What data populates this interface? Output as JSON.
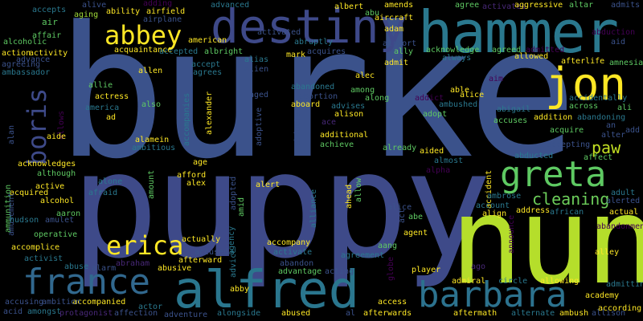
{
  "words": [
    {
      "text": "burke",
      "color": "#3b528b"
    },
    {
      "text": "puppy",
      "color": "#3e4a89"
    },
    {
      "text": "nun",
      "color": "#b5de2b"
    },
    {
      "text": "hammer",
      "color": "#2a788e"
    },
    {
      "text": "destiny",
      "color": "#3e4989"
    },
    {
      "text": "alfred",
      "color": "#2a768e"
    },
    {
      "text": "jon",
      "color": "#fde725"
    },
    {
      "text": "greta",
      "color": "#5ec962"
    },
    {
      "text": "france",
      "color": "#31688e"
    },
    {
      "text": "barbara",
      "color": "#2c728e"
    },
    {
      "text": "abbey",
      "color": "#fde725"
    },
    {
      "text": "erica",
      "color": "#fde725"
    },
    {
      "text": "boris",
      "color": "#3e4a89"
    },
    {
      "text": "paw",
      "color": "#c2df23"
    },
    {
      "text": "cleaning",
      "color": "#6ccd5a"
    },
    {
      "text": "accepts",
      "color": "#2a788e"
    },
    {
      "text": "air",
      "color": "#5ec962"
    },
    {
      "text": "alcoholic",
      "color": "#5ec962"
    },
    {
      "text": "affair",
      "color": "#5ec962"
    },
    {
      "text": "aging",
      "color": "#a0da39"
    },
    {
      "text": "alive",
      "color": "#3b528b"
    },
    {
      "text": "ability",
      "color": "#fde725"
    },
    {
      "text": "adding",
      "color": "#440154"
    },
    {
      "text": "airfield",
      "color": "#fde725"
    },
    {
      "text": "airplane",
      "color": "#3b528b"
    },
    {
      "text": "advanced",
      "color": "#2a788e"
    },
    {
      "text": "albert",
      "color": "#fde725"
    },
    {
      "text": "abu",
      "color": "#5ec962"
    },
    {
      "text": "aircraft",
      "color": "#fde725"
    },
    {
      "text": "amends",
      "color": "#fde725"
    },
    {
      "text": "adam",
      "color": "#fde725"
    },
    {
      "text": "agree",
      "color": "#5ec962"
    },
    {
      "text": "activates",
      "color": "#482878"
    },
    {
      "text": "aggressive",
      "color": "#fde725"
    },
    {
      "text": "altar",
      "color": "#5ec962"
    },
    {
      "text": "admits",
      "color": "#3b528b"
    },
    {
      "text": "abduction",
      "color": "#440154"
    },
    {
      "text": "aid",
      "color": "#3b528b"
    },
    {
      "text": "action",
      "color": "#fde725"
    },
    {
      "text": "advance",
      "color": "#3b528b"
    },
    {
      "text": "activity",
      "color": "#fde725"
    },
    {
      "text": "agreeing",
      "color": "#3b528b"
    },
    {
      "text": "ambassador",
      "color": "#2a788e"
    },
    {
      "text": "american",
      "color": "#fde725"
    },
    {
      "text": "activated",
      "color": "#3b528b"
    },
    {
      "text": "abruptly",
      "color": "#2a788e"
    },
    {
      "text": "airport",
      "color": "#3b528b"
    },
    {
      "text": "ally",
      "color": "#5ec962"
    },
    {
      "text": "acknowledge",
      "color": "#5ec962"
    },
    {
      "text": "agreed",
      "color": "#5ec962"
    },
    {
      "text": "admitted",
      "color": "#440154"
    },
    {
      "text": "acquaintance",
      "color": "#fde725"
    },
    {
      "text": "accepted",
      "color": "#2a788e"
    },
    {
      "text": "albright",
      "color": "#5ec962"
    },
    {
      "text": "acquires",
      "color": "#3b528b"
    },
    {
      "text": "always",
      "color": "#2a788e"
    },
    {
      "text": "allowed",
      "color": "#fde725"
    },
    {
      "text": "afterlife",
      "color": "#fde725"
    },
    {
      "text": "amnesia",
      "color": "#5ec962"
    },
    {
      "text": "mark",
      "color": "#fde725"
    },
    {
      "text": "alias",
      "color": "#2a788e"
    },
    {
      "text": "admit",
      "color": "#fde725"
    },
    {
      "text": "accept",
      "color": "#2a788e"
    },
    {
      "text": "allen",
      "color": "#fde725"
    },
    {
      "text": "agrees",
      "color": "#2a788e"
    },
    {
      "text": "alien",
      "color": "#3b528b"
    },
    {
      "text": "alec",
      "color": "#fde725"
    },
    {
      "text": "aim",
      "color": "#440154"
    },
    {
      "text": "allie",
      "color": "#5ec962"
    },
    {
      "text": "actress",
      "color": "#fde725"
    },
    {
      "text": "america",
      "color": "#2a788e"
    },
    {
      "text": "ad",
      "color": "#fde725"
    },
    {
      "text": "also",
      "color": "#5ec962"
    },
    {
      "text": "accompanies",
      "color": "#2a788e"
    },
    {
      "text": "alexander",
      "color": "#fde725"
    },
    {
      "text": "aged",
      "color": "#3b528b"
    },
    {
      "text": "abandoned",
      "color": "#2a788e"
    },
    {
      "text": "abortion",
      "color": "#3b528b"
    },
    {
      "text": "among",
      "color": "#5ec962"
    },
    {
      "text": "able",
      "color": "#fde725"
    },
    {
      "text": "addict",
      "color": "#440154"
    },
    {
      "text": "ambushed",
      "color": "#2a788e"
    },
    {
      "text": "alice",
      "color": "#fde725"
    },
    {
      "text": "along",
      "color": "#5ec962"
    },
    {
      "text": "aboard",
      "color": "#fde725"
    },
    {
      "text": "advises",
      "color": "#2a788e"
    },
    {
      "text": "alison",
      "color": "#fde725"
    },
    {
      "text": "ace",
      "color": "#482878"
    },
    {
      "text": "adopt",
      "color": "#5ec962"
    },
    {
      "text": "abigail",
      "color": "#2a788e"
    },
    {
      "text": "accuses",
      "color": "#5ec962"
    },
    {
      "text": "addition",
      "color": "#fde725"
    },
    {
      "text": "accidentally",
      "color": "#2a788e"
    },
    {
      "text": "across",
      "color": "#5ec962"
    },
    {
      "text": "abandoning",
      "color": "#2a788e"
    },
    {
      "text": "ali",
      "color": "#5ec962"
    },
    {
      "text": "an",
      "color": "#3b528b"
    },
    {
      "text": "add",
      "color": "#3b528b"
    },
    {
      "text": "alter",
      "color": "#3b528b"
    },
    {
      "text": "acquire",
      "color": "#5ec962"
    },
    {
      "text": "allows",
      "color": "#440154"
    },
    {
      "text": "alan",
      "color": "#3b528b"
    },
    {
      "text": "aide",
      "color": "#fde725"
    },
    {
      "text": "ambitious",
      "color": "#2a788e"
    },
    {
      "text": "alamein",
      "color": "#fde725"
    },
    {
      "text": "adoptive",
      "color": "#3b528b"
    },
    {
      "text": "abducts",
      "color": "#3b528b"
    },
    {
      "text": "additional",
      "color": "#fde725"
    },
    {
      "text": "achieve",
      "color": "#5ec962"
    },
    {
      "text": "already",
      "color": "#5ec962"
    },
    {
      "text": "aided",
      "color": "#fde725"
    },
    {
      "text": "abducted",
      "color": "#2a788e"
    },
    {
      "text": "accepting",
      "color": "#3b528b"
    },
    {
      "text": "affect",
      "color": "#5ec962"
    },
    {
      "text": "acknowledges",
      "color": "#fde725"
    },
    {
      "text": "although",
      "color": "#5ec962"
    },
    {
      "text": "ammunition",
      "color": "#5ec962"
    },
    {
      "text": "afford",
      "color": "#fde725"
    },
    {
      "text": "age",
      "color": "#fde725"
    },
    {
      "text": "alex",
      "color": "#fde725"
    },
    {
      "text": "almost",
      "color": "#2a788e"
    },
    {
      "text": "alpha",
      "color": "#440154"
    },
    {
      "text": "accident",
      "color": "#fde725"
    },
    {
      "text": "adult",
      "color": "#2a788e"
    },
    {
      "text": "alerted",
      "color": "#3b528b"
    },
    {
      "text": "active",
      "color": "#fde725"
    },
    {
      "text": "alone",
      "color": "#2a788e"
    },
    {
      "text": "amount",
      "color": "#5ec962"
    },
    {
      "text": "adopted",
      "color": "#3b528b"
    },
    {
      "text": "alert",
      "color": "#fde725"
    },
    {
      "text": "alliance",
      "color": "#2a788e"
    },
    {
      "text": "ahead",
      "color": "#fde725"
    },
    {
      "text": "allow",
      "color": "#5ec962"
    },
    {
      "text": "ambrose",
      "color": "#2a788e"
    },
    {
      "text": "account",
      "color": "#2a788e"
    },
    {
      "text": "acquired",
      "color": "#fde725"
    },
    {
      "text": "alcohol",
      "color": "#fde725"
    },
    {
      "text": "afraid",
      "color": "#2a788e"
    },
    {
      "text": "amusement",
      "color": "#3b528b"
    },
    {
      "text": "aaron",
      "color": "#5ec962"
    },
    {
      "text": "amulet",
      "color": "#3b528b"
    },
    {
      "text": "hudson",
      "color": "#2a788e"
    },
    {
      "text": "amid",
      "color": "#5ec962"
    },
    {
      "text": "alice",
      "color": "#3b528b"
    },
    {
      "text": "act",
      "color": "#3b528b"
    },
    {
      "text": "abe",
      "color": "#5ec962"
    },
    {
      "text": "align",
      "color": "#fde725"
    },
    {
      "text": "address",
      "color": "#fde725"
    },
    {
      "text": "african",
      "color": "#2a788e"
    },
    {
      "text": "actual",
      "color": "#fde725"
    },
    {
      "text": "announce",
      "color": "#440154"
    },
    {
      "text": "operative",
      "color": "#5ec962"
    },
    {
      "text": "agency",
      "color": "#2a788e"
    },
    {
      "text": "aang",
      "color": "#5ec962"
    },
    {
      "text": "agent",
      "color": "#fde725"
    },
    {
      "text": "absence",
      "color": "#2a788e"
    },
    {
      "text": "abandonment",
      "color": "#440154"
    },
    {
      "text": "activist",
      "color": "#2a788e"
    },
    {
      "text": "actually",
      "color": "#fde725"
    },
    {
      "text": "accompany",
      "color": "#fde725"
    },
    {
      "text": "activate",
      "color": "#2a788e"
    },
    {
      "text": "agreement",
      "color": "#2a788e"
    },
    {
      "text": "alley",
      "color": "#fde725"
    },
    {
      "text": "accomplice",
      "color": "#fde725"
    },
    {
      "text": "abuse",
      "color": "#2a788e"
    },
    {
      "text": "alarm",
      "color": "#3b528b"
    },
    {
      "text": "abraham",
      "color": "#482878"
    },
    {
      "text": "afterward",
      "color": "#fde725"
    },
    {
      "text": "accused",
      "color": "#3b528b"
    },
    {
      "text": "abandon",
      "color": "#3b528b"
    },
    {
      "text": "advice",
      "color": "#2a788e"
    },
    {
      "text": "advantage",
      "color": "#5ec962"
    },
    {
      "text": "acting",
      "color": "#3b528b"
    },
    {
      "text": "globe",
      "color": "#440154"
    },
    {
      "text": "player",
      "color": "#fde725"
    },
    {
      "text": "ago",
      "color": "#482878"
    },
    {
      "text": "abusive",
      "color": "#fde725"
    },
    {
      "text": "abby",
      "color": "#fde725"
    },
    {
      "text": "admiral",
      "color": "#fde725"
    },
    {
      "text": "circle",
      "color": "#2a788e"
    },
    {
      "text": "allowing",
      "color": "#fde725"
    },
    {
      "text": "admitting",
      "color": "#2a788e"
    },
    {
      "text": "accusing",
      "color": "#3b528b"
    },
    {
      "text": "accompanied",
      "color": "#fde725"
    },
    {
      "text": "ambition",
      "color": "#3b528b"
    },
    {
      "text": "amongst",
      "color": "#2a788e"
    },
    {
      "text": "acid",
      "color": "#3b528b"
    },
    {
      "text": "protagonist",
      "color": "#482878"
    },
    {
      "text": "affection",
      "color": "#3b528b"
    },
    {
      "text": "actor",
      "color": "#2a788e"
    },
    {
      "text": "adventure",
      "color": "#3b528b"
    },
    {
      "text": "alongside",
      "color": "#2a788e"
    },
    {
      "text": "abused",
      "color": "#fde725"
    },
    {
      "text": "al",
      "color": "#3b528b"
    },
    {
      "text": "afterwards",
      "color": "#fde725"
    },
    {
      "text": "access",
      "color": "#fde725"
    },
    {
      "text": "aftermath",
      "color": "#fde725"
    },
    {
      "text": "ambush",
      "color": "#fde725"
    },
    {
      "text": "alternate",
      "color": "#2a788e"
    },
    {
      "text": "allison",
      "color": "#3b528b"
    },
    {
      "text": "academy",
      "color": "#fde725"
    },
    {
      "text": "according",
      "color": "#fde725"
    }
  ]
}
